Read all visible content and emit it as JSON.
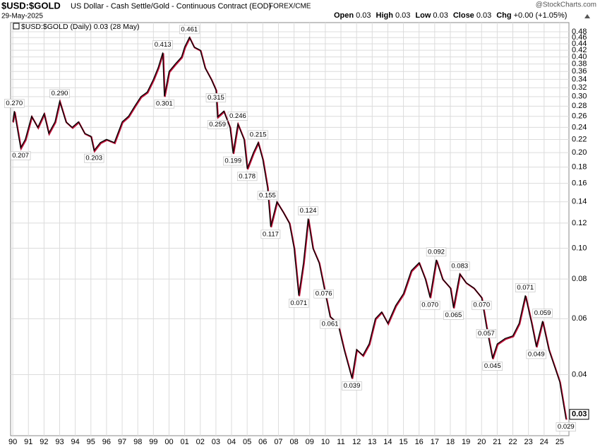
{
  "header": {
    "symbol": "$USD:$GOLD",
    "description": "US Dollar - Cash Settle/Gold - Continuous Contract (EOD)",
    "exchange": "FOREX/CME",
    "date": "29-May-2025",
    "source": "@StockCharts.com",
    "quote": [
      {
        "label": "Open",
        "value": "0.03"
      },
      {
        "label": "High",
        "value": "0.03"
      },
      {
        "label": "Low",
        "value": "0.03"
      },
      {
        "label": "Close",
        "value": "0.03"
      },
      {
        "label": "Chg",
        "value": "+0.00 (+1.05%)"
      }
    ]
  },
  "chart_data": {
    "type": "line",
    "log": true,
    "grid": true,
    "legend_text": "$USD:$GOLD (Daily) 0.03 (28 May)",
    "last_value": 0.03,
    "last_value_label": "0.03",
    "xlim": [
      1989.86,
      2025.59
    ],
    "ylim": [
      0.0257,
      0.513
    ],
    "xticks": [
      {
        "value": 1990,
        "label": "90"
      },
      {
        "value": 1991,
        "label": "91"
      },
      {
        "value": 1992,
        "label": "92"
      },
      {
        "value": 1993,
        "label": "93"
      },
      {
        "value": 1994,
        "label": "94"
      },
      {
        "value": 1995,
        "label": "95"
      },
      {
        "value": 1996,
        "label": "96"
      },
      {
        "value": 1997,
        "label": "97"
      },
      {
        "value": 1998,
        "label": "98"
      },
      {
        "value": 1999,
        "label": "99"
      },
      {
        "value": 2000,
        "label": "00"
      },
      {
        "value": 2001,
        "label": "01"
      },
      {
        "value": 2002,
        "label": "02"
      },
      {
        "value": 2003,
        "label": "03"
      },
      {
        "value": 2004,
        "label": "04"
      },
      {
        "value": 2005,
        "label": "05"
      },
      {
        "value": 2006,
        "label": "06"
      },
      {
        "value": 2007,
        "label": "07"
      },
      {
        "value": 2008,
        "label": "08"
      },
      {
        "value": 2009,
        "label": "09"
      },
      {
        "value": 2010,
        "label": "10"
      },
      {
        "value": 2011,
        "label": "11"
      },
      {
        "value": 2012,
        "label": "12"
      },
      {
        "value": 2013,
        "label": "13"
      },
      {
        "value": 2014,
        "label": "14"
      },
      {
        "value": 2015,
        "label": "15"
      },
      {
        "value": 2016,
        "label": "16"
      },
      {
        "value": 2017,
        "label": "17"
      },
      {
        "value": 2018,
        "label": "18"
      },
      {
        "value": 2019,
        "label": "19"
      },
      {
        "value": 2020,
        "label": "20"
      },
      {
        "value": 2021,
        "label": "21"
      },
      {
        "value": 2022,
        "label": "22"
      },
      {
        "value": 2023,
        "label": "23"
      },
      {
        "value": 2024,
        "label": "24"
      },
      {
        "value": 2025,
        "label": "25"
      }
    ],
    "yticks": [
      0.48,
      0.46,
      0.44,
      0.42,
      {
        "value": 0.4,
        "label": "0.40"
      },
      0.38,
      0.36,
      0.34,
      0.32,
      {
        "value": 0.3,
        "label": "0.30"
      },
      0.28,
      0.26,
      0.24,
      0.22,
      {
        "value": 0.2,
        "label": "0.20"
      },
      0.18,
      0.16,
      0.14,
      0.12,
      {
        "value": 0.1,
        "label": "0.10"
      },
      0.08,
      0.06,
      0.04
    ],
    "x": [
      1990.0,
      1990.1,
      1990.5,
      1990.8,
      1991.2,
      1991.6,
      1992.0,
      1992.3,
      1992.7,
      1993.0,
      1993.4,
      1993.8,
      1994.2,
      1994.6,
      1995.0,
      1995.2,
      1995.6,
      1996.0,
      1996.5,
      1997.0,
      1997.4,
      1997.8,
      1998.2,
      1998.6,
      1999.0,
      1999.3,
      1999.6,
      1999.7,
      2000.0,
      2000.4,
      2000.8,
      2001.0,
      2001.3,
      2001.6,
      2002.0,
      2002.3,
      2002.7,
      2003.0,
      2003.1,
      2003.5,
      2003.9,
      2004.1,
      2004.4,
      2004.8,
      2005.0,
      2005.4,
      2005.7,
      2006.0,
      2006.3,
      2006.5,
      2006.9,
      2007.3,
      2007.7,
      2008.0,
      2008.3,
      2008.6,
      2008.9,
      2009.2,
      2009.6,
      2009.9,
      2010.3,
      2010.8,
      2011.2,
      2011.7,
      2012.0,
      2012.4,
      2012.8,
      2013.2,
      2013.6,
      2014.0,
      2014.5,
      2015.0,
      2015.5,
      2016.0,
      2016.4,
      2016.7,
      2017.1,
      2017.5,
      2018.0,
      2018.2,
      2018.6,
      2019.0,
      2019.5,
      2020.0,
      2020.3,
      2020.7,
      2021.0,
      2021.5,
      2022.0,
      2022.4,
      2022.8,
      2023.2,
      2023.5,
      2023.9,
      2024.3,
      2024.7,
      2025.0,
      2025.4
    ],
    "series": [
      {
        "name": "$USD:$GOLD",
        "color": "#000000",
        "values": [
          0.25,
          0.27,
          0.207,
          0.22,
          0.26,
          0.24,
          0.265,
          0.23,
          0.25,
          0.29,
          0.25,
          0.24,
          0.25,
          0.23,
          0.225,
          0.203,
          0.215,
          0.22,
          0.215,
          0.25,
          0.26,
          0.28,
          0.3,
          0.31,
          0.34,
          0.37,
          0.413,
          0.301,
          0.36,
          0.38,
          0.4,
          0.43,
          0.461,
          0.43,
          0.42,
          0.37,
          0.34,
          0.315,
          0.259,
          0.27,
          0.24,
          0.199,
          0.246,
          0.22,
          0.178,
          0.2,
          0.215,
          0.19,
          0.155,
          0.117,
          0.14,
          0.13,
          0.12,
          0.1,
          0.071,
          0.09,
          0.124,
          0.1,
          0.09,
          0.076,
          0.061,
          0.058,
          0.048,
          0.039,
          0.048,
          0.046,
          0.05,
          0.06,
          0.063,
          0.058,
          0.066,
          0.072,
          0.085,
          0.09,
          0.08,
          0.07,
          0.092,
          0.08,
          0.075,
          0.065,
          0.083,
          0.078,
          0.075,
          0.07,
          0.057,
          0.045,
          0.05,
          0.052,
          0.053,
          0.058,
          0.071,
          0.058,
          0.049,
          0.059,
          0.048,
          0.042,
          0.038,
          0.029
        ]
      }
    ],
    "annotations": [
      {
        "x": 1990.1,
        "value": 0.27,
        "label": "0.270"
      },
      {
        "x": 1990.5,
        "value": 0.207,
        "label": "0.207"
      },
      {
        "x": 1993.0,
        "value": 0.29,
        "label": "0.290"
      },
      {
        "x": 1995.2,
        "value": 0.203,
        "label": "0.203"
      },
      {
        "x": 1999.6,
        "value": 0.413,
        "label": "0.413"
      },
      {
        "x": 1999.7,
        "value": 0.301,
        "label": "0.301"
      },
      {
        "x": 2001.3,
        "value": 0.461,
        "label": "0.461"
      },
      {
        "x": 2003.0,
        "value": 0.315,
        "label": "0.315"
      },
      {
        "x": 2003.1,
        "value": 0.259,
        "label": "0.259"
      },
      {
        "x": 2004.4,
        "value": 0.246,
        "label": "0.246"
      },
      {
        "x": 2004.1,
        "value": 0.199,
        "label": "0.199"
      },
      {
        "x": 2005.7,
        "value": 0.215,
        "label": "0.215"
      },
      {
        "x": 2005.0,
        "value": 0.178,
        "label": "0.178"
      },
      {
        "x": 2006.3,
        "value": 0.155,
        "label": "0.155"
      },
      {
        "x": 2006.5,
        "value": 0.117,
        "label": "0.117"
      },
      {
        "x": 2008.9,
        "value": 0.124,
        "label": "0.124"
      },
      {
        "x": 2008.3,
        "value": 0.071,
        "label": "0.071"
      },
      {
        "x": 2009.9,
        "value": 0.076,
        "label": "0.076"
      },
      {
        "x": 2010.3,
        "value": 0.061,
        "label": "0.061"
      },
      {
        "x": 2011.7,
        "value": 0.039,
        "label": "0.039"
      },
      {
        "x": 2017.1,
        "value": 0.092,
        "label": "0.092"
      },
      {
        "x": 2016.7,
        "value": 0.07,
        "label": "0.070"
      },
      {
        "x": 2018.6,
        "value": 0.083,
        "label": "0.083"
      },
      {
        "x": 2018.2,
        "value": 0.065,
        "label": "0.065"
      },
      {
        "x": 2020.0,
        "value": 0.07,
        "label": "0.070"
      },
      {
        "x": 2020.3,
        "value": 0.057,
        "label": "0.057"
      },
      {
        "x": 2020.7,
        "value": 0.045,
        "label": "0.045"
      },
      {
        "x": 2022.8,
        "value": 0.071,
        "label": "0.071"
      },
      {
        "x": 2023.9,
        "value": 0.059,
        "label": "0.059"
      },
      {
        "x": 2023.5,
        "value": 0.049,
        "label": "0.049"
      },
      {
        "x": 2025.4,
        "value": 0.029,
        "label": "0.029"
      }
    ]
  }
}
